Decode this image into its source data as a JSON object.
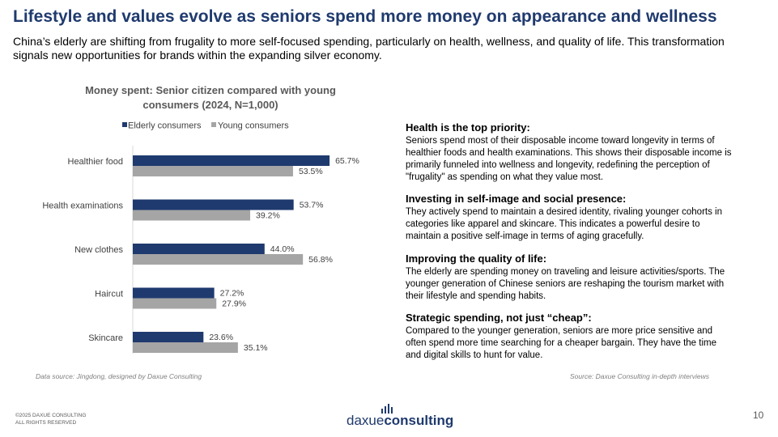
{
  "header": {
    "title": "Lifestyle and values evolve as seniors spend more money on appearance and wellness",
    "subtitle": "China’s elderly are shifting from frugality to more self-focused spending, particularly on health, wellness, and quality of life. This transformation signals new opportunities for brands within the expanding silver economy."
  },
  "colors": {
    "elderly": "#1f3a6e",
    "young": "#a5a5a5",
    "title": "#1f3a6e"
  },
  "chart_data": {
    "type": "bar",
    "orientation": "horizontal",
    "title": "Money spent: Senior citizen compared with young consumers (2024, N=1,000)",
    "categories": [
      "Healthier food",
      "Health examinations",
      "New clothes",
      "Haircut",
      "Skincare"
    ],
    "series": [
      {
        "name": "Elderly consumers",
        "values": [
          65.7,
          53.7,
          44.0,
          27.2,
          23.6
        ],
        "labels": [
          "65.7%",
          "53.7%",
          "44.0%",
          "27.2%",
          "23.6%"
        ]
      },
      {
        "name": "Young consumers",
        "values": [
          53.5,
          39.2,
          56.8,
          27.9,
          35.1
        ],
        "labels": [
          "53.5%",
          "39.2%",
          "56.8%",
          "27.9%",
          "35.1%"
        ]
      }
    ],
    "xlim": [
      0,
      100
    ],
    "legend": "top",
    "grid": false
  },
  "insights": [
    {
      "heading": "Health is the top priority:",
      "body": "Seniors spend most of their disposable income toward longevity in terms of healthier foods and health examinations. This shows their disposable income is primarily funneled into wellness and longevity, redefining the perception of \"frugality\" as spending on what they value most."
    },
    {
      "heading": "Investing in self-image and social presence:",
      "body": "They actively spend to maintain a desired identity, rivaling younger cohorts in categories like apparel and skincare. This indicates a powerful desire to maintain a positive self-image in terms of aging gracefully."
    },
    {
      "heading": "Improving the quality of life:",
      "body": "The elderly are spending money on traveling and leisure activities/sports. The younger generation of Chinese seniors are reshaping the tourism market with their lifestyle and spending habits."
    },
    {
      "heading": "Strategic spending, not just “cheap”:",
      "body": "Compared to the younger generation, seniors are more price sensitive and often spend more time searching for a cheaper bargain. They have the time and digital skills to hunt for value."
    }
  ],
  "footer": {
    "source_left": "Data source: Jingdong, designed by Daxue Consulting",
    "source_right": "Source: Daxue Consulting in-depth interviews",
    "copyright_line1": "©2025 DAXUE CONSULTING",
    "copyright_line2": "ALL RIGHTS RESERVED",
    "logo_part1": "daxue",
    "logo_part2": "consulting",
    "page_number": "10"
  }
}
